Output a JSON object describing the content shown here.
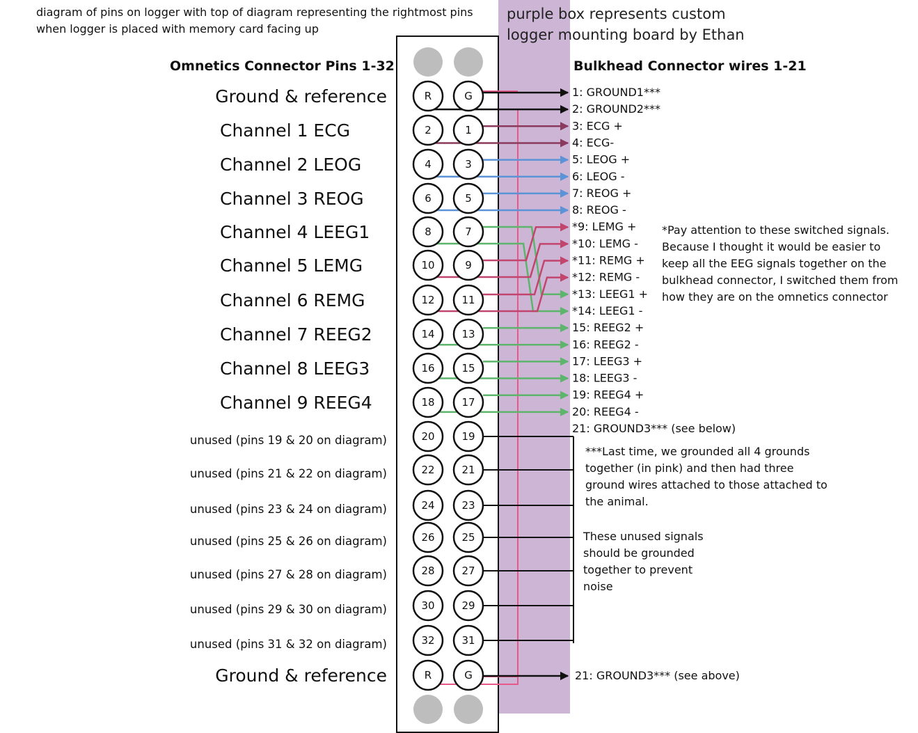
{
  "top_note": [
    "diagram of pins on logger with top of diagram representing the rightmost pins",
    "when logger is placed with memory card facing up"
  ],
  "purple_note": [
    "purple box represents custom",
    "logger mounting board by Ethan"
  ],
  "left_header": "Omnetics Connector Pins 1-32",
  "right_header": "Bulkhead Connector wires 1-21",
  "channel_labels": [
    "Ground & reference",
    "Channel 1 ECG",
    "Channel 2 LEOG",
    "Channel 3 REOG",
    "Channel 4 LEEG1",
    "Channel 5 LEMG",
    "Channel 6 REMG",
    "Channel 7 REEG2",
    "Channel 8 LEEG3",
    "Channel 9 REEG4"
  ],
  "unused_labels": [
    "unused (pins 19 & 20 on diagram)",
    "unused (pins 21 & 22 on diagram)",
    "unused (pins 23 & 24 on diagram)",
    "unused (pins 25 & 26 on diagram)",
    "unused (pins 27 & 28 on diagram)",
    "unused (pins 29 & 30 on diagram)",
    "unused (pins 31 & 32 on diagram)"
  ],
  "bottom_label": "Ground & reference",
  "pin_rows": [
    [
      "R",
      "G"
    ],
    [
      "2",
      "1"
    ],
    [
      "4",
      "3"
    ],
    [
      "6",
      "5"
    ],
    [
      "8",
      "7"
    ],
    [
      "10",
      "9"
    ],
    [
      "12",
      "11"
    ],
    [
      "14",
      "13"
    ],
    [
      "16",
      "15"
    ],
    [
      "18",
      "17"
    ],
    [
      "20",
      "19"
    ],
    [
      "22",
      "21"
    ],
    [
      "24",
      "23"
    ],
    [
      "26",
      "25"
    ],
    [
      "28",
      "27"
    ],
    [
      "30",
      "29"
    ],
    [
      "32",
      "31"
    ],
    [
      "R",
      "G"
    ]
  ],
  "wire_labels": [
    "1: GROUND1***",
    "2: GROUND2***",
    "3: ECG +",
    "4: ECG-",
    "5: LEOG +",
    "6: LEOG -",
    "7: REOG +",
    "8: REOG -",
    "*9: LEMG +",
    "*10: LEMG -",
    "*11: REMG +",
    "*12: REMG -",
    "*13: LEEG1 +",
    "*14: LEEG1 -",
    "15: REEG2 +",
    "16: REEG2 -",
    "17: LEEG3 +",
    "18: LEEG3 -",
    "19: REEG4 +",
    "20: REEG4 -",
    "21: GROUND3*** (see below)"
  ],
  "bottom_wire_label": "21: GROUND3*** (see above)",
  "switched_note": [
    "*Pay attention to these switched signals.",
    "Because I thought it would be easier to",
    "keep all the EEG signals together on the",
    "bulkhead connector, I switched them from",
    "how they are on the omnetics connector"
  ],
  "ground_note": [
    "***Last time, we grounded all 4 grounds",
    "together (in pink) and then had three",
    "ground wires attached to those attached to",
    "the animal."
  ],
  "unused_note": [
    "These unused signals",
    "should be grounded",
    "together to prevent",
    "noise"
  ],
  "colors": {
    "purple_board": "#cdb5d6",
    "ground": "#111111",
    "ecg": "#8a3a5c",
    "eog": "#5b93d6",
    "emg": "#c2456e",
    "eeg": "#5db56c",
    "pink": "#e8588a",
    "dot": "#bdbdbd"
  }
}
